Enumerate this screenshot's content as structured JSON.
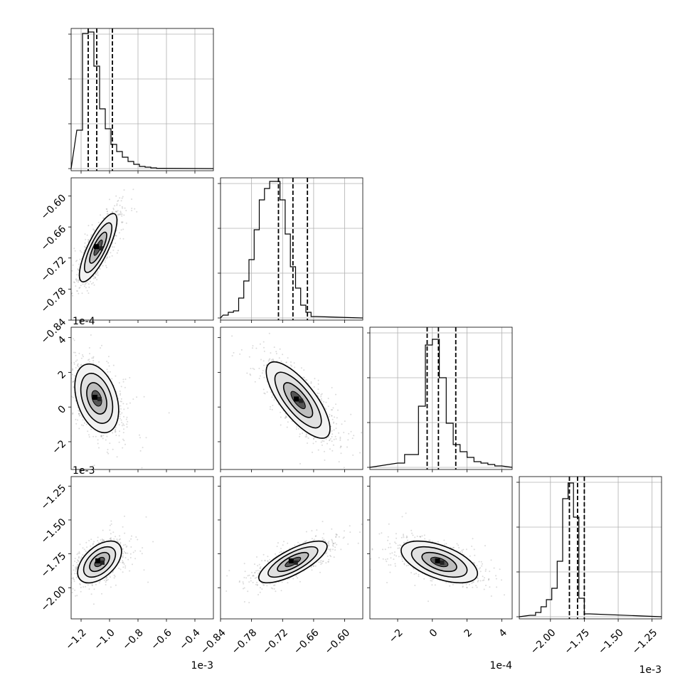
{
  "chart_data": {
    "type": "corner",
    "grid": true,
    "quantile_lines": "dashed",
    "params": [
      {
        "offset": "1e-3",
        "range": [
          -1.27,
          -0.27
        ],
        "ticks": [
          -1.2,
          -1.0,
          -0.8,
          -0.6,
          -0.4
        ],
        "tick_labels": [
          "−1.2",
          "−1.0",
          "−0.8",
          "−0.6",
          "−0.4"
        ],
        "quantiles": [
          -1.15,
          -1.09,
          -0.98
        ],
        "hist_edges_start": -1.23,
        "hist_bin_width": 0.04,
        "hist_counts": [
          0.27,
          0.95,
          0.96,
          0.72,
          0.42,
          0.28,
          0.17,
          0.12,
          0.08,
          0.05,
          0.03,
          0.015,
          0.01,
          0.005,
          0.002
        ]
      },
      {
        "offset": "",
        "range": [
          -0.84,
          -0.565
        ],
        "ticks": [
          -0.84,
          -0.78,
          -0.72,
          -0.66,
          -0.6
        ],
        "tick_labels": [
          "−0.84",
          "−0.78",
          "−0.72",
          "−0.66",
          "−0.60"
        ],
        "quantiles": [
          -0.728,
          -0.7,
          -0.672
        ],
        "hist_edges_start": -0.835,
        "hist_bin_width": 0.01,
        "hist_counts": [
          0.02,
          0.04,
          0.05,
          0.14,
          0.26,
          0.41,
          0.62,
          0.83,
          0.91,
          0.96,
          0.96,
          0.83,
          0.59,
          0.36,
          0.21,
          0.09,
          0.04,
          0.01
        ]
      },
      {
        "offset": "1e-4",
        "range": [
          -3.6,
          4.6
        ],
        "ticks": [
          -2,
          0,
          2,
          4
        ],
        "tick_labels": [
          "−2",
          "0",
          "2",
          "4"
        ],
        "quantiles": [
          -0.3,
          0.35,
          1.35
        ],
        "hist_edges_start": -2.0,
        "hist_bin_width": 0.4,
        "hist_counts": [
          0.03,
          0.09,
          0.09,
          0.43,
          0.86,
          0.9,
          0.63,
          0.31,
          0.16,
          0.11,
          0.07,
          0.04,
          0.03,
          0.02,
          0.01
        ]
      },
      {
        "offset": "1e-3",
        "range": [
          -2.23,
          -1.18
        ],
        "ticks": [
          -2.0,
          -1.75,
          -1.5,
          -1.25
        ],
        "tick_labels": [
          "−2.00",
          "−1.75",
          "−1.50",
          "−1.25"
        ],
        "quantiles": [
          -1.86,
          -1.8,
          -1.75
        ],
        "hist_edges_start": -2.15,
        "hist_bin_width": 0.04,
        "hist_counts": [
          0.01,
          0.03,
          0.07,
          0.12,
          0.2,
          0.39,
          0.83,
          0.94,
          0.7,
          0.13,
          0.02
        ]
      }
    ],
    "pairs": [
      {
        "row": 1,
        "col": 0,
        "mean": [
          -1.08,
          -0.7
        ],
        "sd": [
          0.06,
          0.03
        ],
        "rho": 0.8
      },
      {
        "row": 2,
        "col": 0,
        "mean": [
          -1.09,
          0.5
        ],
        "sd": [
          0.07,
          0.9
        ],
        "rho": -0.35
      },
      {
        "row": 2,
        "col": 1,
        "mean": [
          -0.69,
          0.4
        ],
        "sd": [
          0.028,
          1.0
        ],
        "rho": -0.75
      },
      {
        "row": 3,
        "col": 0,
        "mean": [
          -1.07,
          -1.81
        ],
        "sd": [
          0.07,
          0.07
        ],
        "rho": 0.5
      },
      {
        "row": 3,
        "col": 1,
        "mean": [
          -0.7,
          -1.81
        ],
        "sd": [
          0.03,
          0.07
        ],
        "rho": 0.75
      },
      {
        "row": 3,
        "col": 2,
        "mean": [
          0.4,
          -1.81
        ],
        "sd": [
          1.0,
          0.07
        ],
        "rho": -0.55
      }
    ]
  }
}
